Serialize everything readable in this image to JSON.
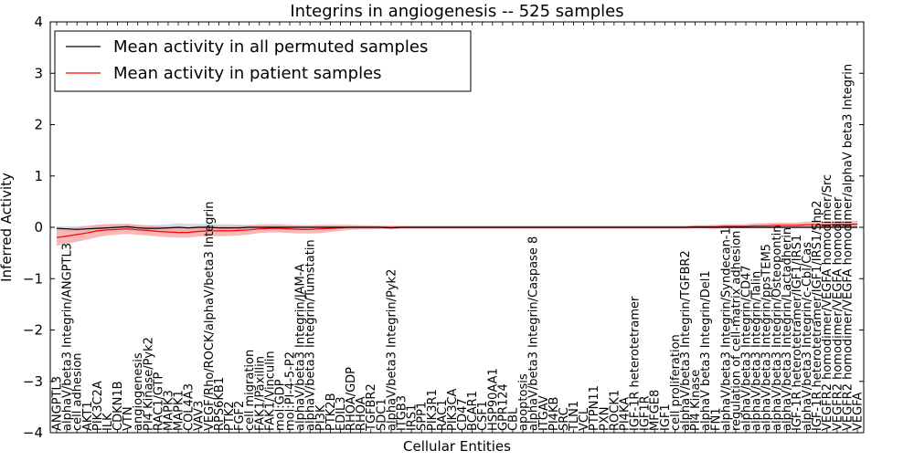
{
  "chart_data": {
    "type": "line",
    "title": "Integrins in angiogenesis -- 525 samples",
    "xlabel": "Cellular Entities",
    "ylabel": "Inferred Activity",
    "ylim": [
      -4,
      4
    ],
    "yticks": [
      4,
      3,
      2,
      1,
      0,
      -1,
      -2,
      -3,
      -4
    ],
    "ytick_labels": [
      "4",
      "3",
      "2",
      "1",
      "0",
      "−1",
      "−2",
      "−3",
      "−4"
    ],
    "legend_position": "top-left",
    "categories": [
      "ANGPTL3",
      "alphaV/beta3 Integrin/ANGPTL3",
      "cell adhesion",
      "AKT1",
      "PIK3C2A",
      "ILK",
      "CDKN1B",
      "VTN",
      "angiogenesis",
      "PI4 Kinase/Pyk2",
      "RAC1/GTP",
      "MAPK3",
      "MAPK1",
      "COL4A3",
      "VAV3",
      "VEGF/Rho/ROCK/alphaV/beta3 Integrin",
      "RPS6KB1",
      "PTK2",
      "FGF2",
      "cell migration",
      "FAK1/Paxillin",
      "FAK1/Vinculin",
      "mol:GDP",
      "mol:PI-4-5-P2",
      "alphaV/beta3 Integrin/JAM-A",
      "alphaV/beta3 Integrin/Tumstatin",
      "PI3K",
      "PTK2B",
      "EDIL3",
      "RHOA/GDP",
      "RHOA",
      "TGFBR2",
      "SDC1",
      "alphaV/beta3 Integrin/Pyk2",
      "ITGB3",
      "IRS1",
      "SPP1",
      "PIK3R1",
      "RAC1",
      "PIK3CA",
      "CD47",
      "BCAR1",
      "CSF1",
      "HSP90AA1",
      "GPR124",
      "CBL",
      "apoptosis",
      "alphaV/beta3 Integrin/Caspase 8",
      "ITGAV",
      "PI4KB",
      "SRC",
      "TLN1",
      "VCL",
      "PTPN11",
      "PXN",
      "ROCK1",
      "PI4KA",
      "IGF-1R heterotetramer",
      "IGF1R",
      "MFGE8",
      "IGF1",
      "cell proliferation",
      "alphaV/beta3 Integrin/TGFBR2",
      "PI4 Kinase",
      "alphaV beta3 Integrin/Del1",
      "FN1",
      "alphaV/beta3 Integrin/Syndecan-1",
      "regulation of cell-matrix adhesion",
      "alphaV/beta3 Integrin/CD47",
      "alphaV/beta3 Integrin/Talin",
      "alphaV/beta3 Integrin/ppsTEM5",
      "alphaV/beta3 Integrin/Osteopontin",
      "alphaV/beta3 Integrin/Lactadherin",
      "IGF-1R heterotetramer/IGF1/IRS1",
      "alphaV/beta3 Integrin/c-Cbl/Cas",
      "IGF-1R heterotetramer/IGF1/IRS1/Shp2",
      "VEGFR2 homodimer/VEGFA homodimer/Src",
      "VEGFR2 homodimer/VEGFA homodimer",
      "VEGFR2 homodimer/VEGFA homodimer/alphaV beta3 Integrin",
      "VEGFA"
    ],
    "series": [
      {
        "name": "Mean activity in all permuted samples",
        "color": "#000000",
        "values": [
          -0.02,
          -0.03,
          -0.04,
          -0.03,
          -0.02,
          -0.01,
          0.0,
          0.01,
          -0.01,
          -0.02,
          -0.02,
          -0.01,
          0.0,
          -0.01,
          0.0,
          0.0,
          -0.01,
          -0.01,
          -0.01,
          0.0,
          0.0,
          0.0,
          0.0,
          0.0,
          0.0,
          0.0,
          0.0,
          0.0,
          0.0,
          0.0,
          0.0,
          0.0,
          0.0,
          -0.01,
          0.0,
          0.0,
          0.0,
          0.0,
          0.0,
          0.0,
          0.0,
          0.0,
          0.0,
          0.0,
          0.0,
          0.0,
          0.0,
          0.0,
          0.0,
          0.0,
          0.0,
          0.0,
          0.0,
          0.0,
          0.0,
          0.0,
          0.0,
          0.0,
          0.0,
          0.0,
          0.0,
          0.0,
          0.0,
          0.0,
          0.0,
          0.0,
          0.0,
          0.0,
          0.0,
          0.0,
          0.0,
          0.0,
          0.0,
          0.0,
          0.0,
          0.0,
          0.0,
          0.0,
          0.0,
          0.0
        ],
        "band": [
          0.04,
          0.05,
          0.06,
          0.06,
          0.07,
          0.07,
          0.07,
          0.06,
          0.06,
          0.06,
          0.07,
          0.07,
          0.08,
          0.08,
          0.07,
          0.07,
          0.07,
          0.07,
          0.06,
          0.05,
          0.05,
          0.04,
          0.04,
          0.04,
          0.04,
          0.04,
          0.04,
          0.03,
          0.03,
          0.03,
          0.03,
          0.03,
          0.03,
          0.03,
          0.02,
          0.02,
          0.02,
          0.02,
          0.02,
          0.02,
          0.02,
          0.02,
          0.02,
          0.02,
          0.02,
          0.02,
          0.02,
          0.02,
          0.02,
          0.02,
          0.02,
          0.02,
          0.02,
          0.02,
          0.02,
          0.02,
          0.02,
          0.02,
          0.02,
          0.02,
          0.02,
          0.02,
          0.02,
          0.02,
          0.02,
          0.02,
          0.02,
          0.02,
          0.02,
          0.02,
          0.02,
          0.02,
          0.02,
          0.02,
          0.02,
          0.02,
          0.02,
          0.02,
          0.02,
          0.02
        ]
      },
      {
        "name": "Mean activity in patient samples",
        "color": "#ff0000",
        "values": [
          -0.2,
          -0.17,
          -0.14,
          -0.11,
          -0.07,
          -0.05,
          -0.04,
          -0.03,
          -0.05,
          -0.06,
          -0.08,
          -0.09,
          -0.1,
          -0.1,
          -0.08,
          -0.07,
          -0.07,
          -0.07,
          -0.06,
          -0.05,
          -0.03,
          -0.02,
          -0.02,
          -0.03,
          -0.04,
          -0.04,
          -0.03,
          -0.02,
          -0.01,
          0.0,
          0.0,
          0.0,
          0.0,
          0.0,
          0.0,
          0.0,
          0.0,
          0.0,
          0.0,
          0.0,
          0.0,
          0.0,
          0.0,
          0.0,
          0.0,
          0.0,
          0.0,
          0.0,
          0.0,
          0.0,
          0.0,
          0.0,
          0.0,
          0.0,
          0.0,
          0.0,
          0.0,
          0.0,
          0.0,
          0.0,
          0.0,
          0.0,
          0.0,
          0.01,
          0.01,
          0.01,
          0.02,
          0.02,
          0.02,
          0.03,
          0.03,
          0.04,
          0.04,
          0.04,
          0.05,
          0.05,
          0.05,
          0.06,
          0.06,
          0.06
        ],
        "band": [
          0.16,
          0.15,
          0.14,
          0.13,
          0.12,
          0.11,
          0.1,
          0.1,
          0.1,
          0.1,
          0.1,
          0.1,
          0.1,
          0.1,
          0.1,
          0.1,
          0.1,
          0.1,
          0.1,
          0.09,
          0.08,
          0.08,
          0.08,
          0.08,
          0.08,
          0.08,
          0.08,
          0.07,
          0.06,
          0.05,
          0.04,
          0.04,
          0.03,
          0.03,
          0.03,
          0.03,
          0.03,
          0.03,
          0.03,
          0.03,
          0.03,
          0.03,
          0.03,
          0.03,
          0.03,
          0.03,
          0.03,
          0.03,
          0.03,
          0.03,
          0.03,
          0.03,
          0.03,
          0.03,
          0.03,
          0.03,
          0.03,
          0.03,
          0.03,
          0.03,
          0.03,
          0.03,
          0.03,
          0.03,
          0.03,
          0.04,
          0.04,
          0.04,
          0.04,
          0.05,
          0.05,
          0.05,
          0.05,
          0.05,
          0.06,
          0.06,
          0.06,
          0.06,
          0.06,
          0.06
        ]
      }
    ]
  }
}
